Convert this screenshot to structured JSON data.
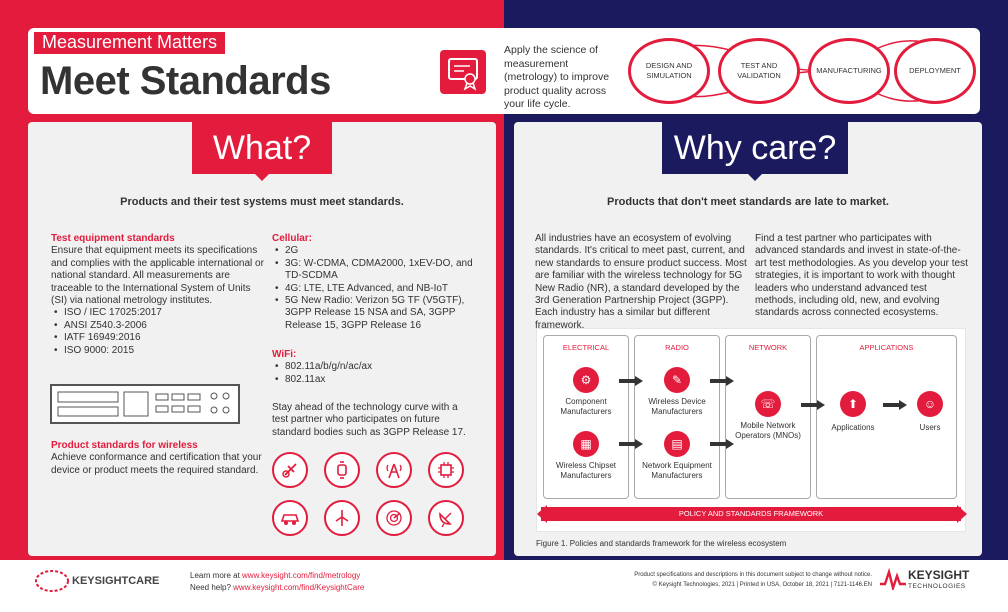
{
  "header": {
    "kicker": "Measurement Matters",
    "title": "Meet Standards",
    "intro": "Apply the science of measurement (metrology) to improve product quality across your life cycle.",
    "icon": "certificate-icon",
    "lifecycle": [
      "DESIGN AND SIMULATION",
      "TEST AND VALIDATION",
      "MANUFACTURING",
      "DEPLOYMENT"
    ]
  },
  "what": {
    "tab": "What?",
    "subhead": "Products and their test systems must meet standards.",
    "test_equipment": {
      "heading": "Test equipment standards",
      "body": "Ensure that equipment meets its specifications and complies with the applicable international or national standard. All measurements are traceable to the International System of Units (SI) via national metrology institutes.",
      "items": [
        "ISO / IEC 17025:2017",
        "ANSI Z540.3-2006",
        "IATF 16949:2016",
        "ISO 9000: 2015"
      ]
    },
    "wireless": {
      "heading": "Product standards for wireless",
      "body": "Achieve conformance and certification that your device or product meets the required standard."
    },
    "cellular": {
      "heading": "Cellular:",
      "items": [
        "2G",
        "3G: W-CDMA, CDMA2000, 1xEV-DO, and TD-SCDMA",
        "4G: LTE, LTE Advanced, and NB-IoT",
        "5G New Radio: Verizon 5G TF (V5GTF), 3GPP Release 15 NSA and SA, 3GPP Release 15, 3GPP Release 16"
      ]
    },
    "wifi": {
      "heading": "WiFi:",
      "items": [
        "802.11a/b/g/n/ac/ax",
        "802.11ax"
      ]
    },
    "ahead": "Stay ahead of the technology curve with a test partner who participates on future standard bodies such as 3GPP Release 17.",
    "icons": [
      "satellite-icon",
      "smartwatch-icon",
      "antenna-tower-icon",
      "chip-icon",
      "car-icon",
      "wind-turbine-icon",
      "radar-icon",
      "satellite-dish-icon"
    ]
  },
  "why": {
    "tab": "Why care?",
    "subhead": "Products that don't meet standards are late to market.",
    "col1": "All industries have an ecosystem of evolving standards. It's critical to meet past, current, and new standards to ensure product success. Most are familiar with the wireless technology for 5G New Radio (NR), a standard developed by the 3rd Generation Partnership Project (3GPP). Each industry has a similar but different framework.",
    "col2": "Find a test partner who participates with advanced standards and invest in state-of-the-art test methodologies. As you develop your test strategies, it is important to work with thought leaders who understand advanced test methods, including old, new, and evolving standards across connected ecosystems.",
    "diagram": {
      "columns": [
        "ELECTRICAL",
        "RADIO",
        "NETWORK",
        "APPLICATIONS"
      ],
      "nodes": {
        "component": "Component Manufacturers",
        "chipset": "Wireless Chipset Manufacturers",
        "device": "Wireless Device Manufacturers",
        "network_eq": "Network Equipment Manufacturers",
        "mno": "Mobile Network Operators (MNOs)",
        "applications": "Applications",
        "users": "Users"
      },
      "policy": "POLICY AND STANDARDS FRAMEWORK"
    },
    "caption": "Figure 1. Policies and standards framework for the wireless ecosystem"
  },
  "footer": {
    "care_logo": "KEYSIGHTCARE",
    "learn_prefix": "Learn more at ",
    "learn_link": "www.keysight.com/find/metrology",
    "help_prefix": "Need help? ",
    "help_link": "www.keysight.com/find/KeysightCare",
    "disclaimer": "Product specifications and descriptions in this document subject to change without notice.",
    "copyright": "© Keysight Technologies, 2021   |   Printed in USA, October 18, 2021   |   7121-1146.EN",
    "brand": "KEYSIGHT",
    "brand_sub": "TECHNOLOGIES"
  },
  "colors": {
    "accent": "#e31c3d",
    "navy": "#1c1a5e"
  }
}
